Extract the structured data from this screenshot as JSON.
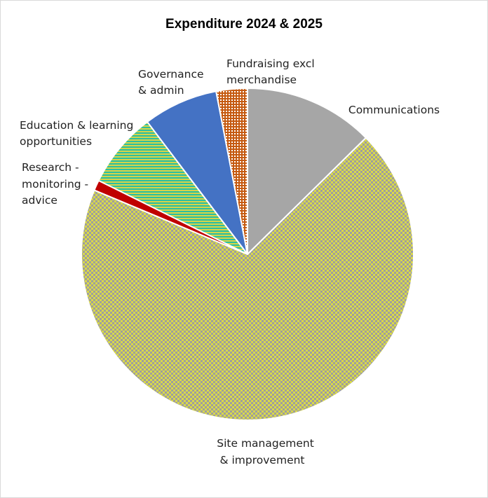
{
  "chart_data": {
    "type": "pie",
    "title": "Expenditure 2024 & 2025",
    "start_angle_deg": 0,
    "direction": "clockwise",
    "slices": [
      {
        "label": "Communications",
        "value": 12.5,
        "color": "#a6a6a6",
        "pattern": "solid"
      },
      {
        "label": "Site management & improvement",
        "value": 68.0,
        "color": "#c9c93e",
        "pattern": "checker"
      },
      {
        "label": "Research - monitoring - advice",
        "value": 1.0,
        "color": "#c00000",
        "pattern": "solid"
      },
      {
        "label": "Education & learning opportunities",
        "value": 7.3,
        "color": "#2bbfa0",
        "pattern": "stripes"
      },
      {
        "label": "Governance & admin",
        "value": 7.2,
        "color": "#4472c4",
        "pattern": "solid"
      },
      {
        "label": "Fundraising excl merchandise",
        "value": 3.0,
        "color": "#c55a11",
        "pattern": "dots"
      }
    ],
    "legend": "none",
    "data_labels": "category names outside slices"
  }
}
